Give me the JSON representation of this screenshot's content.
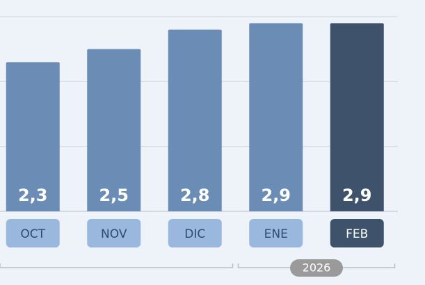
{
  "chart_data": {
    "type": "bar",
    "categories": [
      "OCT",
      "NOV",
      "DIC",
      "ENE",
      "FEB"
    ],
    "values": [
      2.3,
      2.5,
      2.8,
      2.9,
      2.9
    ],
    "value_labels": [
      "2,3",
      "2,5",
      "2,8",
      "2,9",
      "2,9"
    ],
    "colors": [
      "#6b8cb5",
      "#6b8cb5",
      "#6b8cb5",
      "#6b8cb5",
      "#3f526b"
    ],
    "label_colors": [
      "#9ab8de",
      "#9ab8de",
      "#9ab8de",
      "#9ab8de",
      "#3f526b"
    ],
    "ylim": [
      0,
      3
    ],
    "yticks": [
      0,
      1,
      2,
      3
    ],
    "grid": true,
    "groups": [
      {
        "label": null,
        "count": 3
      },
      {
        "label": "2026",
        "count": 2
      }
    ]
  }
}
